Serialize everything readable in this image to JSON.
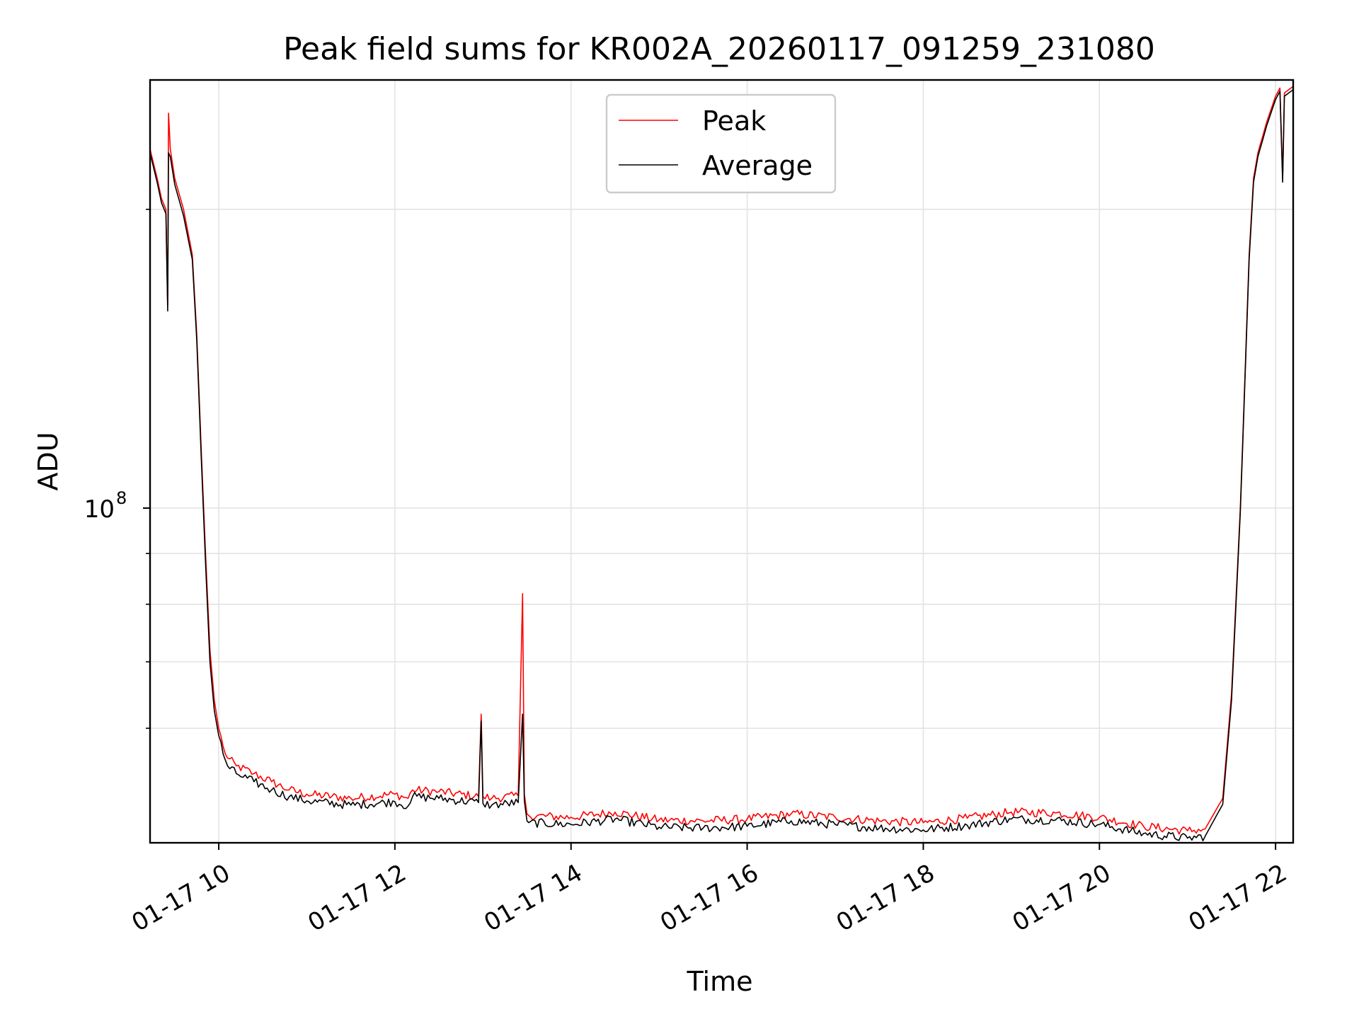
{
  "chart_data": {
    "type": "line",
    "title": "Peak field sums for KR002A_20260117_091259_231080",
    "xlabel": "Time",
    "ylabel": "ADU",
    "x_unit": "hours (01-17)",
    "xlim": [
      9.22,
      22.2
    ],
    "ylim": [
      46000000,
      270000000
    ],
    "yscale": "log",
    "x_ticks": [
      {
        "value": 10,
        "label": "01-17 10"
      },
      {
        "value": 12,
        "label": "01-17 12"
      },
      {
        "value": 14,
        "label": "01-17 14"
      },
      {
        "value": 16,
        "label": "01-17 16"
      },
      {
        "value": 18,
        "label": "01-17 18"
      },
      {
        "value": 20,
        "label": "01-17 20"
      },
      {
        "value": 22,
        "label": "01-17 22"
      }
    ],
    "y_major_ticks": [
      {
        "value": 100000000,
        "base": "10",
        "exp": "8"
      }
    ],
    "y_minor_ticks": [
      60000000,
      70000000,
      80000000,
      90000000,
      200000000
    ],
    "grid": true,
    "legend_position": "top-center",
    "series": [
      {
        "name": "Peak",
        "color": "#ff0000",
        "x": [
          9.22,
          9.3,
          9.35,
          9.4,
          9.42,
          9.43,
          9.45,
          9.5,
          9.6,
          9.7,
          9.75,
          9.8,
          9.85,
          9.9,
          9.95,
          10.0,
          10.05,
          10.1,
          10.2,
          10.4,
          10.6,
          10.8,
          11.0,
          11.5,
          12.0,
          12.15,
          12.2,
          12.5,
          12.95,
          12.98,
          13.0,
          13.1,
          13.4,
          13.45,
          13.47,
          13.5,
          13.52,
          14.0,
          14.5,
          15.0,
          15.5,
          16.0,
          16.5,
          17.0,
          17.5,
          18.0,
          18.5,
          19.0,
          19.5,
          20.0,
          20.5,
          21.0,
          21.2,
          21.4,
          21.5,
          21.6,
          21.7,
          21.75,
          21.8,
          21.9,
          22.0,
          22.05,
          22.08,
          22.1,
          22.15,
          22.2
        ],
        "y": [
          230000000,
          215000000,
          205000000,
          200000000,
          160000000,
          250000000,
          230000000,
          215000000,
          200000000,
          180000000,
          150000000,
          115000000,
          90000000,
          72000000,
          64000000,
          60000000,
          57500000,
          56000000,
          55000000,
          54000000,
          53000000,
          52000000,
          51500000,
          51000000,
          51500000,
          51000000,
          52000000,
          51800000,
          51200000,
          62000000,
          51200000,
          51000000,
          51300000,
          82000000,
          51500000,
          49200000,
          49000000,
          48800000,
          49400000,
          48500000,
          48400000,
          48600000,
          49200000,
          48800000,
          48400000,
          48200000,
          48700000,
          49400000,
          49300000,
          48800000,
          47800000,
          47300000,
          47500000,
          51000000,
          65000000,
          100000000,
          180000000,
          215000000,
          228000000,
          245000000,
          260000000,
          265000000,
          215000000,
          262000000,
          264000000,
          266000000
        ]
      },
      {
        "name": "Average",
        "color": "#000000",
        "x": [
          9.22,
          9.3,
          9.35,
          9.4,
          9.42,
          9.43,
          9.45,
          9.5,
          9.6,
          9.7,
          9.75,
          9.8,
          9.85,
          9.9,
          9.95,
          10.0,
          10.05,
          10.1,
          10.2,
          10.4,
          10.6,
          10.8,
          11.0,
          11.5,
          12.0,
          12.15,
          12.2,
          12.5,
          12.95,
          12.98,
          13.0,
          13.1,
          13.4,
          13.45,
          13.47,
          13.5,
          13.52,
          14.0,
          14.5,
          15.0,
          15.5,
          16.0,
          16.5,
          17.0,
          17.5,
          18.0,
          18.5,
          19.0,
          19.5,
          20.0,
          20.5,
          21.0,
          21.2,
          21.4,
          21.5,
          21.6,
          21.7,
          21.75,
          21.8,
          21.9,
          22.0,
          22.05,
          22.08,
          22.1,
          22.15,
          22.2
        ],
        "y": [
          228000000,
          213000000,
          203000000,
          198000000,
          158000000,
          228000000,
          226000000,
          212000000,
          197000000,
          178000000,
          148000000,
          113000000,
          88000000,
          70000000,
          62500000,
          59000000,
          56500000,
          55000000,
          54000000,
          53000000,
          52000000,
          51200000,
          50700000,
          50200000,
          50600000,
          50100000,
          51200000,
          51000000,
          50500000,
          61000000,
          50400000,
          50200000,
          50500000,
          62000000,
          50700000,
          48400000,
          48200000,
          48000000,
          48600000,
          47700000,
          47600000,
          47800000,
          48400000,
          48000000,
          47600000,
          47400000,
          47900000,
          48600000,
          48500000,
          48000000,
          47000000,
          46500000,
          46700000,
          50300000,
          64000000,
          99000000,
          178000000,
          213000000,
          226000000,
          243000000,
          258000000,
          263000000,
          213000000,
          260000000,
          262000000,
          264000000
        ]
      }
    ]
  }
}
